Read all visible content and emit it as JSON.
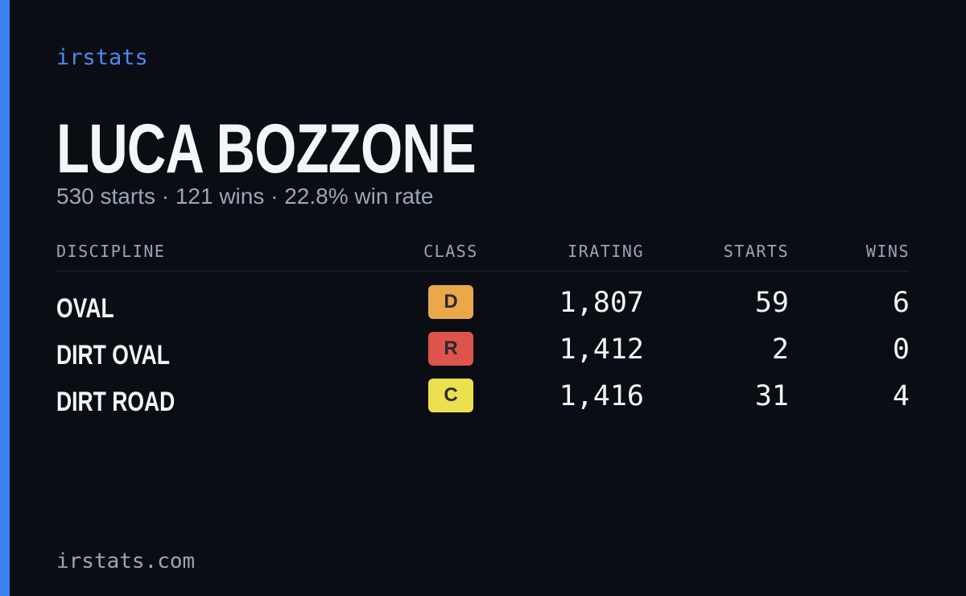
{
  "brand": "irstats",
  "player": {
    "name": "LUCA BOZZONE",
    "summary": "530 starts · 121 wins · 22.8% win rate"
  },
  "table": {
    "headers": [
      "DISCIPLINE",
      "CLASS",
      "IRATING",
      "STARTS",
      "WINS"
    ],
    "rows": [
      {
        "discipline": "OVAL",
        "class": "D",
        "class_color": "#eaa84a",
        "irating": "1,807",
        "starts": "59",
        "wins": "6"
      },
      {
        "discipline": "DIRT OVAL",
        "class": "R",
        "class_color": "#dc544c",
        "irating": "1,412",
        "starts": "2",
        "wins": "0"
      },
      {
        "discipline": "DIRT ROAD",
        "class": "C",
        "class_color": "#ece04e",
        "irating": "1,416",
        "starts": "31",
        "wins": "4"
      }
    ]
  },
  "footer": "irstats.com"
}
